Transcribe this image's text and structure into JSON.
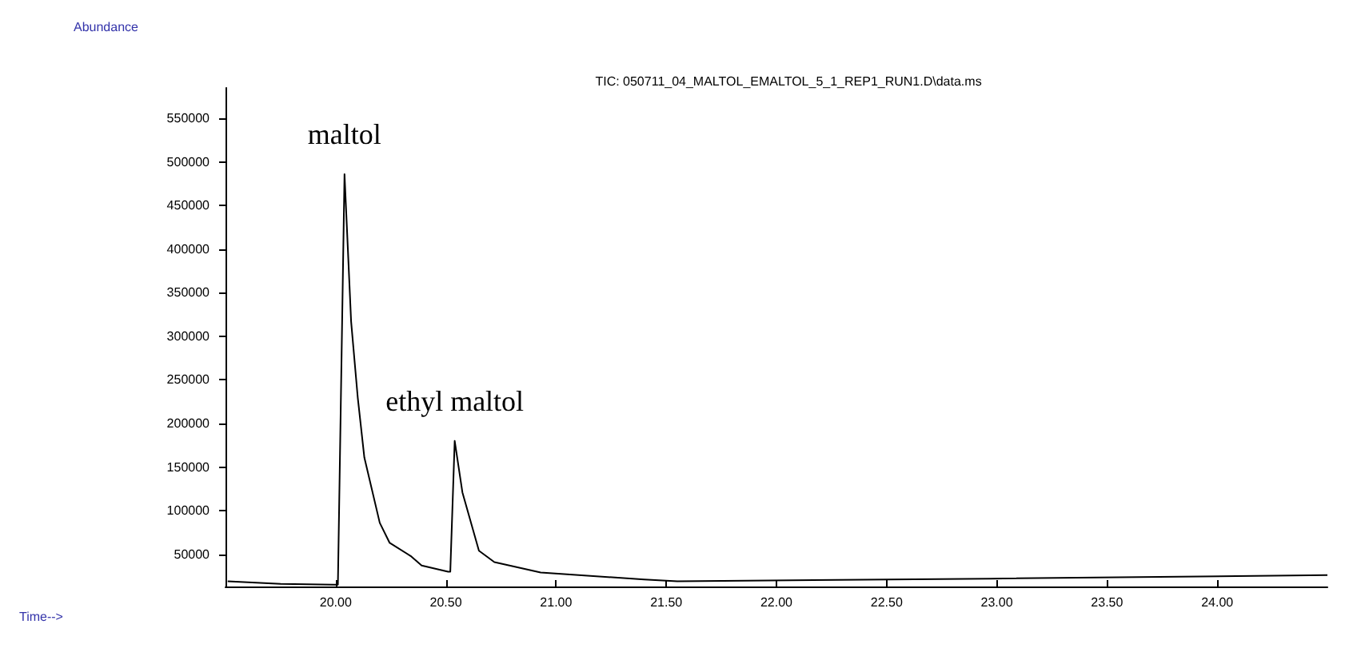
{
  "chart_data": {
    "type": "line",
    "title": "TIC: 050711_04_MALTOL_EMALTOL_5_1_REP1_RUN1.D\\data.ms",
    "ylabel": "Abundance",
    "x": [
      19.51,
      19.75,
      19.99,
      20.01,
      20.04,
      20.07,
      20.1,
      20.13,
      20.2,
      20.245,
      20.34,
      20.39,
      20.51,
      20.52,
      20.54,
      20.575,
      20.65,
      20.72,
      20.93,
      21.4,
      21.55,
      22.97,
      24.5
    ],
    "series": [
      {
        "color": "#000000",
        "values": [
          19000,
          16000,
          15000,
          15000,
          486000,
          317000,
          230000,
          161000,
          86000,
          63000,
          48000,
          37000,
          30000,
          30000,
          180000,
          121000,
          54000,
          41000,
          29000,
          21000,
          19000,
          22000,
          26000
        ]
      }
    ],
    "annotations": [
      "Time-->",
      {
        "text": "maltol",
        "x": 20.04,
        "y": 486000
      },
      {
        "text": "ethyl maltol",
        "x": 20.54,
        "y": 179700
      }
    ],
    "xlim": [
      19.5,
      24.5
    ],
    "xticks": [
      {
        "value": 20,
        "label": "20.00"
      },
      {
        "value": 20.5,
        "label": "20.50"
      },
      {
        "value": 21,
        "label": "21.00"
      },
      {
        "value": 21.5,
        "label": "21.50"
      },
      {
        "value": 22,
        "label": "22.00"
      },
      {
        "value": 22.5,
        "label": "22.50"
      },
      {
        "value": 23,
        "label": "23.00"
      },
      {
        "value": 23.5,
        "label": "23.50"
      },
      {
        "value": 24,
        "label": "24.00"
      }
    ],
    "ylim": [
      13000,
      585000
    ],
    "yticks": [
      50000,
      100000,
      150000,
      200000,
      250000,
      300000,
      350000,
      400000,
      450000,
      500000,
      550000
    ],
    "grid": false,
    "marker": "none",
    "line_style": "solid"
  }
}
